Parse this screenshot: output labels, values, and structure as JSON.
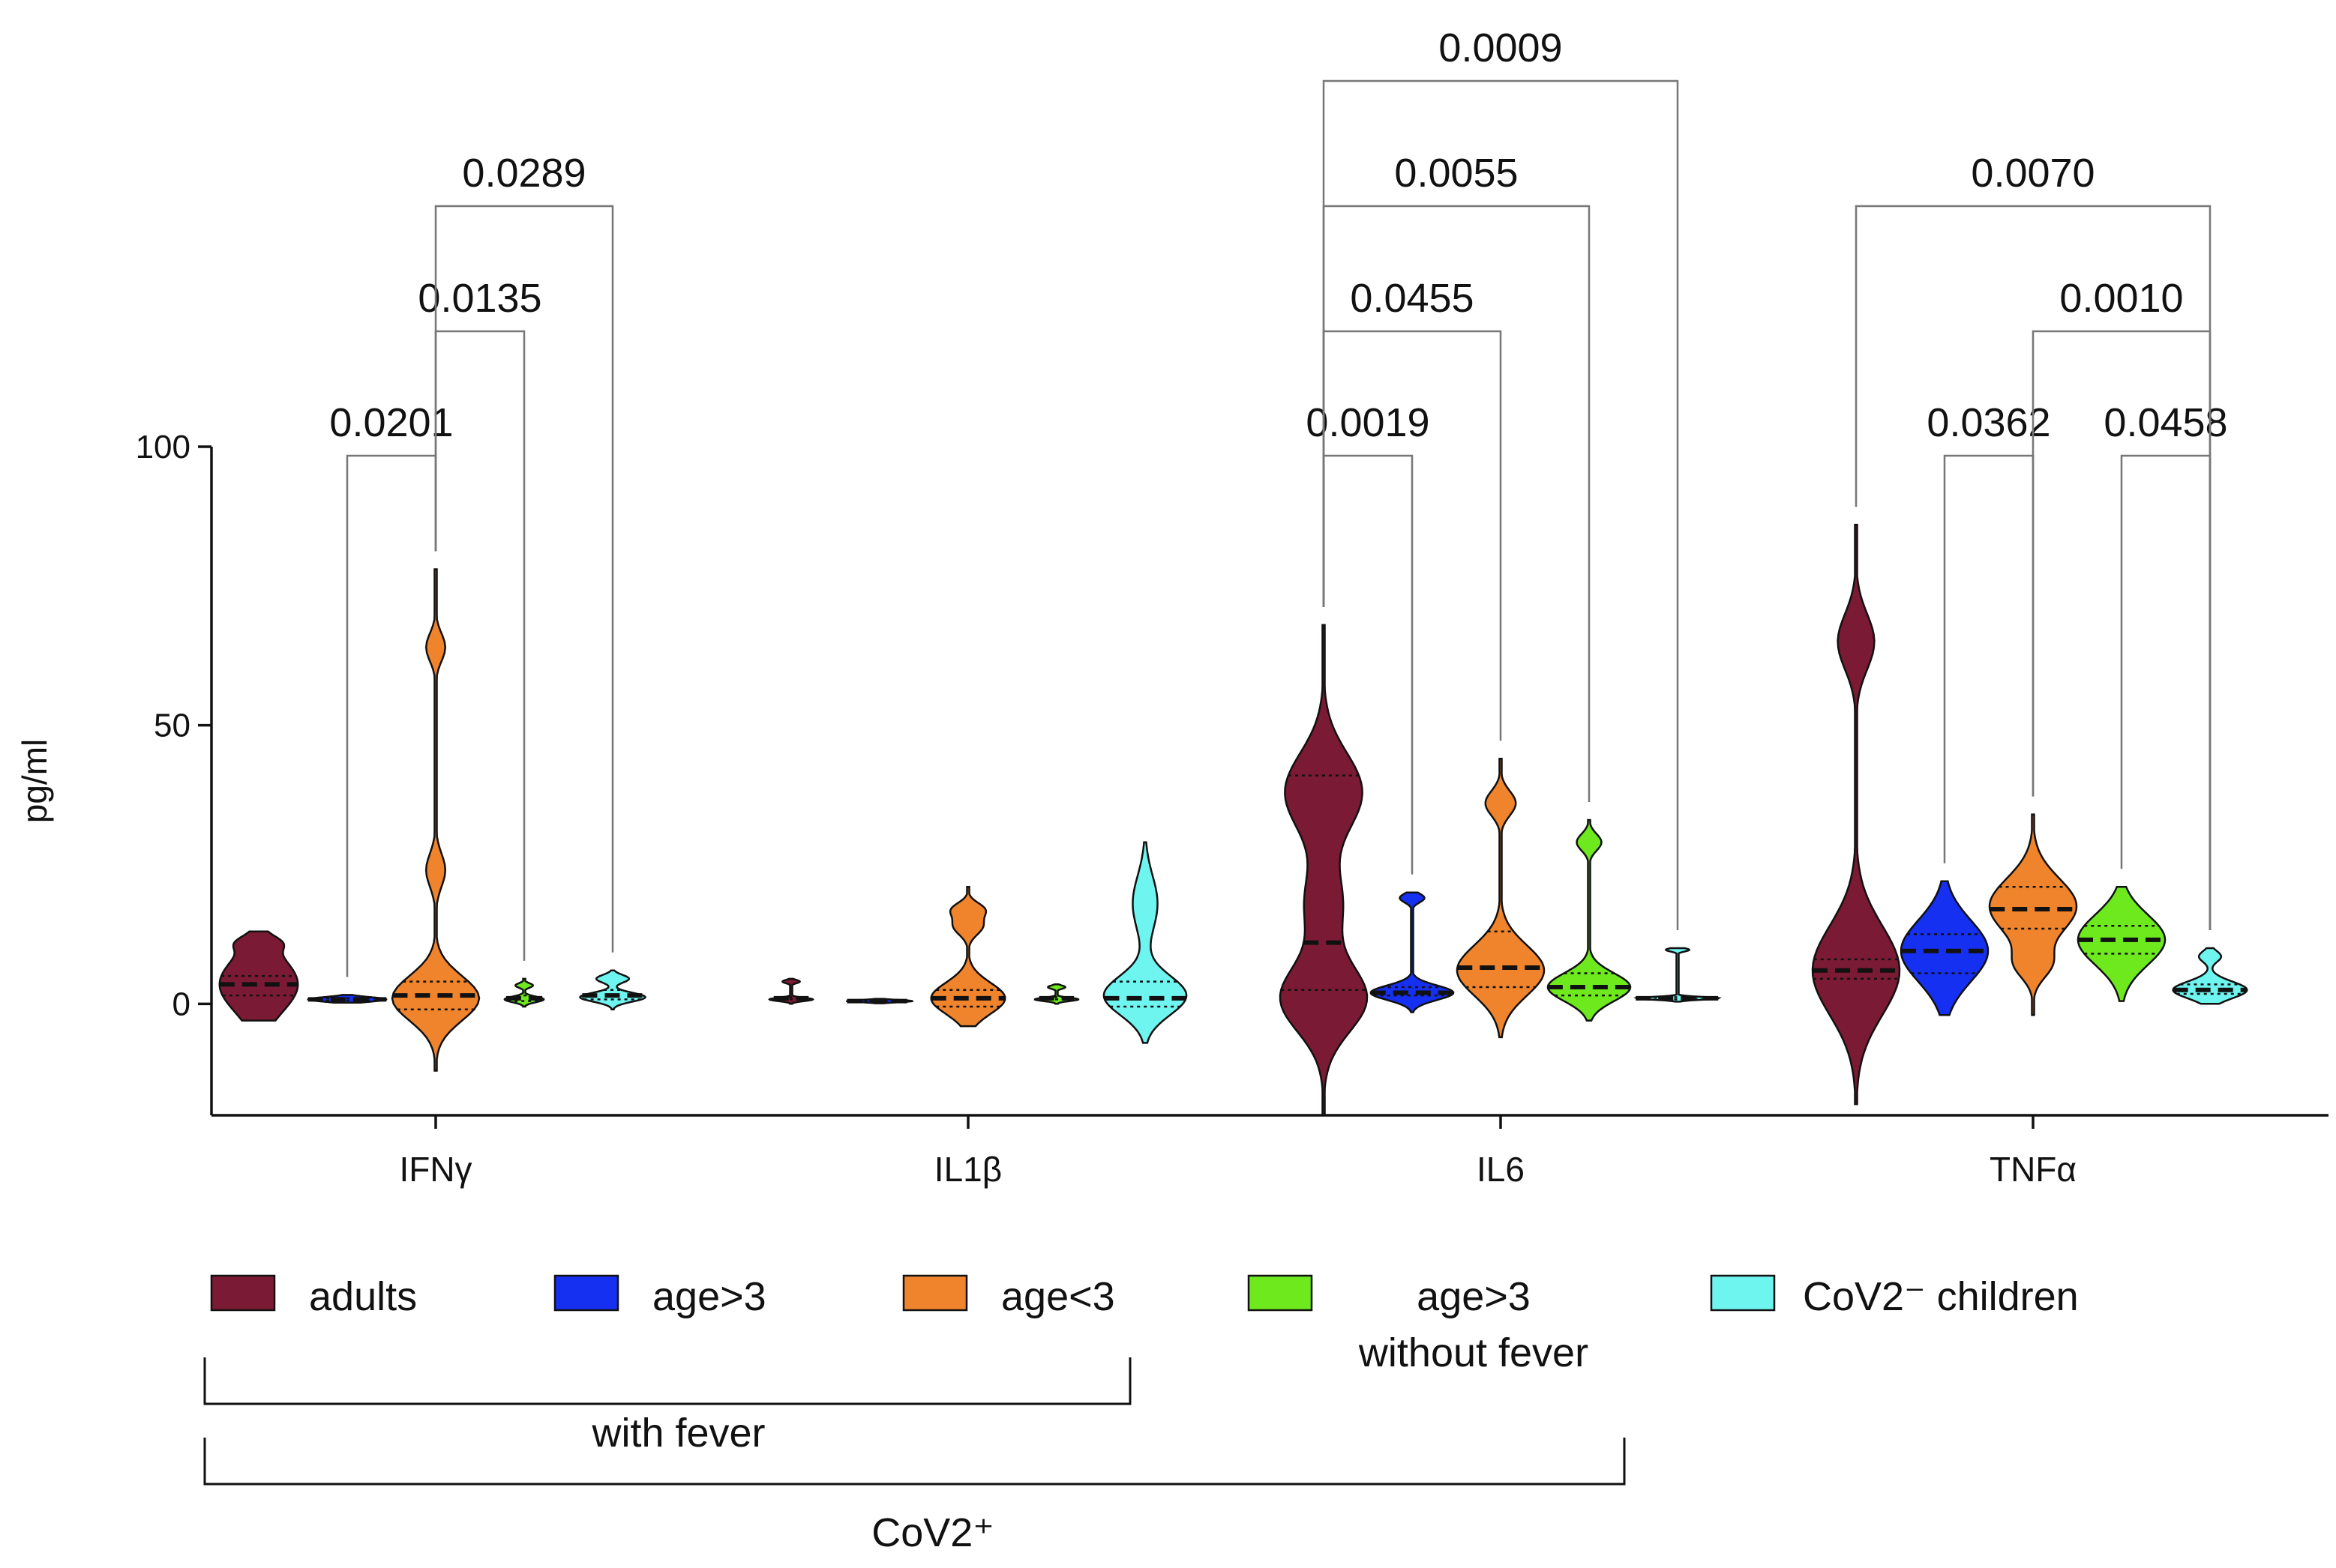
{
  "chart_data": {
    "type": "violin",
    "title": "",
    "xlabel": "",
    "ylabel": "pg/ml",
    "ylim": [
      -20,
      100
    ],
    "yticks": [
      0,
      50,
      100
    ],
    "categories": [
      "IFNγ",
      "IL1β",
      "IL6",
      "TNFα"
    ],
    "series": [
      {
        "name": "adults",
        "color": "#7a1a35"
      },
      {
        "name": "age>3",
        "color": "#1530f0"
      },
      {
        "name": "age<3",
        "color": "#f0842c"
      },
      {
        "name": "age>3 without fever",
        "color": "#6ee91e"
      },
      {
        "name": "CoV2⁻ children",
        "color": "#6ff5ef"
      }
    ],
    "violins": [
      {
        "category": 0,
        "series": 0,
        "ymin": -3,
        "ymax": 13,
        "median": 3.5,
        "q1": 1.5,
        "q3": 5,
        "maxw": 0.9,
        "modes": [
          [
            3.5,
            5,
            1
          ],
          [
            11,
            1.2,
            0.3
          ]
        ]
      },
      {
        "category": 0,
        "series": 1,
        "ymin": 0.2,
        "ymax": 1.6,
        "median": 0.8,
        "q1": 0.6,
        "q3": 1.0,
        "maxw": 0.9,
        "modes": [
          [
            0.8,
            0.4,
            1
          ]
        ]
      },
      {
        "category": 0,
        "series": 2,
        "ymin": -12,
        "ymax": 78,
        "median": 1.5,
        "q1": -1,
        "q3": 4,
        "maxw": 1.0,
        "modes": [
          [
            1,
            4,
            1
          ],
          [
            24,
            3,
            0.22
          ],
          [
            64,
            2.5,
            0.22
          ]
        ]
      },
      {
        "category": 0,
        "series": 3,
        "ymin": -0.5,
        "ymax": 4.5,
        "median": 1.0,
        "q1": 0.5,
        "q3": 1.5,
        "maxw": 0.45,
        "modes": [
          [
            0.8,
            0.5,
            1
          ],
          [
            3.3,
            0.4,
            0.45
          ]
        ]
      },
      {
        "category": 0,
        "series": 4,
        "ymin": -1,
        "ymax": 6,
        "median": 1.5,
        "q1": 0.8,
        "q3": 2.5,
        "maxw": 0.75,
        "modes": [
          [
            1.2,
            0.8,
            1
          ],
          [
            4.5,
            0.7,
            0.5
          ]
        ]
      },
      {
        "category": 1,
        "series": 0,
        "ymin": 0,
        "ymax": 4.5,
        "median": 1,
        "q1": 0.8,
        "q3": 1.2,
        "maxw": 0.5,
        "modes": [
          [
            0.8,
            0.3,
            1
          ],
          [
            4,
            0.3,
            0.4
          ]
        ]
      },
      {
        "category": 1,
        "series": 1,
        "ymin": 0.1,
        "ymax": 0.9,
        "median": 0.5,
        "q1": 0.4,
        "q3": 0.6,
        "maxw": 0.75,
        "modes": [
          [
            0.5,
            0.2,
            1
          ]
        ]
      },
      {
        "category": 1,
        "series": 2,
        "ymin": -4,
        "ymax": 21,
        "median": 1,
        "q1": -0.5,
        "q3": 2.5,
        "maxw": 0.85,
        "modes": [
          [
            1,
            2.8,
            1
          ],
          [
            14,
            1.6,
            0.4
          ],
          [
            17,
            1.2,
            0.4
          ]
        ]
      },
      {
        "category": 1,
        "series": 3,
        "ymin": 0,
        "ymax": 3.5,
        "median": 1,
        "q1": 0.8,
        "q3": 1.2,
        "maxw": 0.5,
        "modes": [
          [
            0.8,
            0.3,
            1
          ],
          [
            3,
            0.3,
            0.4
          ]
        ]
      },
      {
        "category": 1,
        "series": 4,
        "ymin": -7,
        "ymax": 29,
        "median": 1,
        "q1": -0.5,
        "q3": 4,
        "maxw": 0.95,
        "modes": [
          [
            1.5,
            3.5,
            1
          ],
          [
            18,
            5,
            0.3
          ]
        ]
      },
      {
        "category": 2,
        "series": 0,
        "ymin": -20,
        "ymax": 68,
        "median": 11,
        "q1": 2.5,
        "q3": 41,
        "maxw": 1.0,
        "modes": [
          [
            1,
            6,
            0.95
          ],
          [
            38,
            7,
            0.85
          ],
          [
            18,
            6,
            0.4
          ]
        ]
      },
      {
        "category": 2,
        "series": 1,
        "ymin": -1.5,
        "ymax": 20,
        "median": 2,
        "q1": 1.5,
        "q3": 3,
        "maxw": 0.95,
        "modes": [
          [
            2,
            1.3,
            1
          ],
          [
            19,
            0.8,
            0.3
          ]
        ]
      },
      {
        "category": 2,
        "series": 2,
        "ymin": -6,
        "ymax": 44,
        "median": 6.5,
        "q1": 3,
        "q3": 13,
        "maxw": 1.0,
        "modes": [
          [
            6,
            4.5,
            1
          ],
          [
            36,
            2.2,
            0.35
          ]
        ]
      },
      {
        "category": 2,
        "series": 3,
        "ymin": -3,
        "ymax": 33,
        "median": 3,
        "q1": 1.5,
        "q3": 5.5,
        "maxw": 0.95,
        "modes": [
          [
            3,
            2.5,
            1
          ],
          [
            29,
            1.5,
            0.3
          ]
        ]
      },
      {
        "category": 2,
        "series": 4,
        "ymin": 0.4,
        "ymax": 10,
        "median": 1,
        "q1": 0.8,
        "q3": 1.2,
        "maxw": 0.95,
        "modes": [
          [
            1,
            0.25,
            1
          ],
          [
            9.7,
            0.3,
            0.28
          ]
        ]
      },
      {
        "category": 3,
        "series": 0,
        "ymin": -18,
        "ymax": 86,
        "median": 6,
        "q1": 4.5,
        "q3": 8,
        "maxw": 1.0,
        "modes": [
          [
            6,
            8,
            1
          ],
          [
            65,
            5,
            0.42
          ]
        ]
      },
      {
        "category": 3,
        "series": 1,
        "ymin": -2,
        "ymax": 22,
        "median": 9.5,
        "q1": 5.5,
        "q3": 12.5,
        "maxw": 1.0,
        "modes": [
          [
            9.5,
            5.5,
            1
          ]
        ]
      },
      {
        "category": 3,
        "series": 2,
        "ymin": -2,
        "ymax": 34,
        "median": 17,
        "q1": 13.5,
        "q3": 21,
        "maxw": 1.0,
        "modes": [
          [
            17.5,
            5,
            1
          ],
          [
            7,
            2.5,
            0.35
          ]
        ]
      },
      {
        "category": 3,
        "series": 3,
        "ymin": 0.5,
        "ymax": 21,
        "median": 11.5,
        "q1": 9,
        "q3": 14,
        "maxw": 1.0,
        "modes": [
          [
            11.5,
            4.5,
            1
          ]
        ]
      },
      {
        "category": 3,
        "series": 4,
        "ymin": 0,
        "ymax": 10,
        "median": 2.5,
        "q1": 1.8,
        "q3": 3.5,
        "maxw": 0.85,
        "modes": [
          [
            2.5,
            1.5,
            1
          ],
          [
            8.5,
            1,
            0.3
          ]
        ]
      }
    ],
    "comparisons": [
      {
        "category": 0,
        "from": 1,
        "to": 2,
        "p": "0.0201",
        "level": 1
      },
      {
        "category": 0,
        "from": 2,
        "to": 3,
        "p": "0.0135",
        "level": 2
      },
      {
        "category": 0,
        "from": 2,
        "to": 4,
        "p": "0.0289",
        "level": 3
      },
      {
        "category": 2,
        "from": 0,
        "to": 1,
        "p": "0.0019",
        "level": 1
      },
      {
        "category": 2,
        "from": 0,
        "to": 2,
        "p": "0.0455",
        "level": 2
      },
      {
        "category": 2,
        "from": 0,
        "to": 3,
        "p": "0.0055",
        "level": 3
      },
      {
        "category": 2,
        "from": 0,
        "to": 4,
        "p": "0.0009",
        "level": 4
      },
      {
        "category": 3,
        "from": 1,
        "to": 2,
        "p": "0.0362",
        "level": 1
      },
      {
        "category": 3,
        "from": 3,
        "to": 4,
        "p": "0.0458",
        "level": 1
      },
      {
        "category": 3,
        "from": 2,
        "to": 4,
        "p": "0.0010",
        "level": 2
      },
      {
        "category": 3,
        "from": 0,
        "to": 4,
        "p": "0.0070",
        "level": 3
      }
    ],
    "legend": {
      "position": "bottom",
      "groups": [
        {
          "label": "with fever",
          "covers": [
            0,
            1,
            2
          ]
        },
        {
          "label": "CoV2⁺",
          "covers": [
            0,
            1,
            2,
            3
          ]
        }
      ]
    }
  }
}
